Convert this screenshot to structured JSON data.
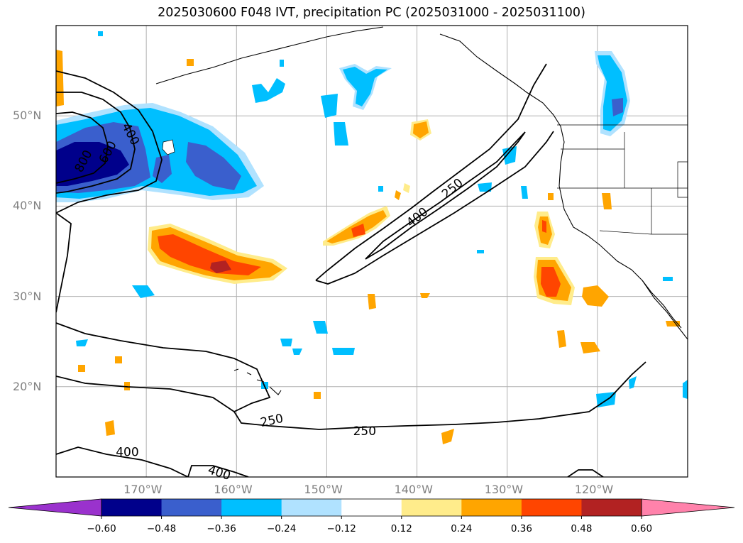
{
  "title": "2025030600 F048 IVT, precipitation PC (2025031000 - 2025031100)",
  "map": {
    "lon_range": [
      -180,
      -110
    ],
    "lat_range": [
      10,
      60
    ],
    "gridlines": true,
    "lat_ticks": [
      {
        "value": 50,
        "label": "50°N"
      },
      {
        "value": 40,
        "label": "40°N"
      },
      {
        "value": 30,
        "label": "30°N"
      },
      {
        "value": 20,
        "label": "20°N"
      }
    ],
    "lon_ticks": [
      {
        "value": -170,
        "label": "170°W"
      },
      {
        "value": -160,
        "label": "160°W"
      },
      {
        "value": -150,
        "label": "150°W"
      },
      {
        "value": -140,
        "label": "140°W"
      },
      {
        "value": -130,
        "label": "130°W"
      },
      {
        "value": -120,
        "label": "120°W"
      }
    ],
    "ivt_contour_labels": [
      {
        "text": "250",
        "lon": -136.1,
        "lat": 42.0,
        "angle": -40
      },
      {
        "text": "400",
        "lon": -140.0,
        "lat": 38.8,
        "angle": -38
      },
      {
        "text": "400",
        "lon": -171.7,
        "lat": 48.0,
        "angle": 62
      },
      {
        "text": "800",
        "lon": -177.0,
        "lat": 45.0,
        "angle": -62
      },
      {
        "text": "600",
        "lon": -174.3,
        "lat": 46.0,
        "angle": -62
      },
      {
        "text": "250",
        "lon": -156.1,
        "lat": 16.3,
        "angle": -12
      },
      {
        "text": "250",
        "lon": -145.8,
        "lat": 15.1,
        "angle": 0
      },
      {
        "text": "400",
        "lon": -172.1,
        "lat": 12.8,
        "angle": 0
      },
      {
        "text": "400",
        "lon": -161.9,
        "lat": 10.5,
        "angle": 18
      }
    ]
  },
  "colorbar": {
    "colors": [
      "#9a32cd",
      "#00008b",
      "#3a5fcd",
      "#00bfff",
      "#b0e2ff",
      "#ffffff",
      "#ffec8b",
      "#ffa500",
      "#ff4500",
      "#b22222",
      "#ff82ab"
    ],
    "labels": [
      "−0.60",
      "−0.48",
      "−0.36",
      "−0.24",
      "−0.12",
      "0.12",
      "0.24",
      "0.36",
      "0.48",
      "0.60"
    ]
  }
}
